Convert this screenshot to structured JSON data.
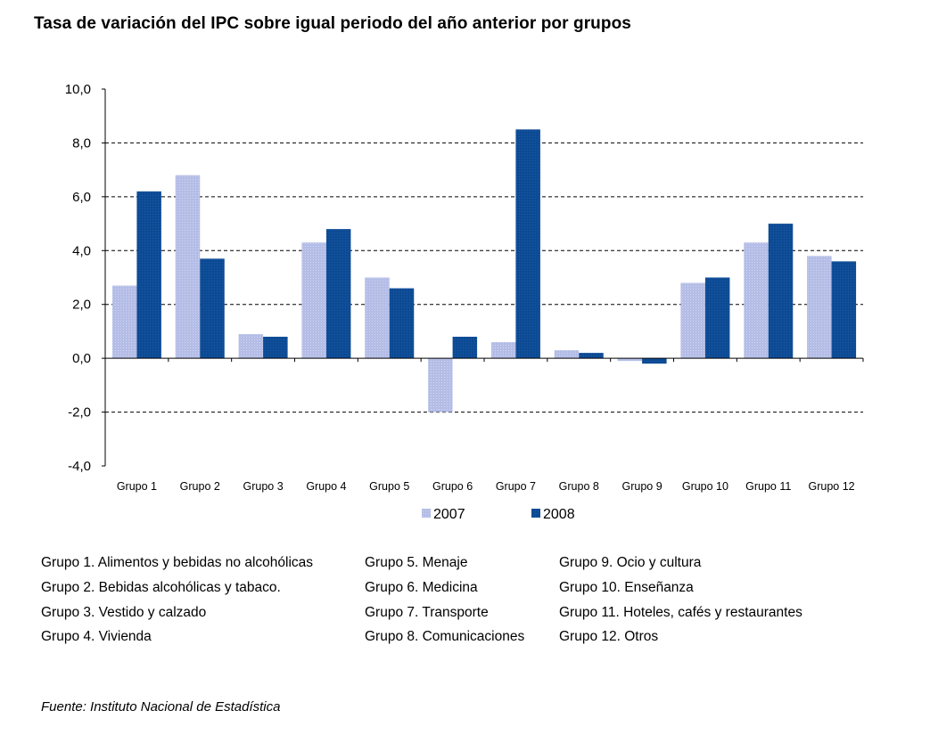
{
  "title": "Tasa de variación del IPC sobre igual periodo del año anterior por grupos",
  "colors": {
    "series_2007": "#b4bde6",
    "series_2008": "#0d4a94",
    "grid": "#000000"
  },
  "chart_data": {
    "type": "bar",
    "categories": [
      "Grupo 1",
      "Grupo 2",
      "Grupo 3",
      "Grupo 4",
      "Grupo 5",
      "Grupo 6",
      "Grupo 7",
      "Grupo 8",
      "Grupo 9",
      "Grupo 10",
      "Grupo 11",
      "Grupo 12"
    ],
    "series": [
      {
        "name": "2007",
        "values": [
          2.7,
          6.8,
          0.9,
          4.3,
          3.0,
          -2.0,
          0.6,
          0.3,
          -0.1,
          2.8,
          4.3,
          3.8
        ]
      },
      {
        "name": "2008",
        "values": [
          6.2,
          3.7,
          0.8,
          4.8,
          2.6,
          0.8,
          8.5,
          0.2,
          -0.2,
          3.0,
          5.0,
          3.6
        ]
      }
    ],
    "yticks": [
      "10,0",
      "8,0",
      "6,0",
      "4,0",
      "2,0",
      "0,0",
      "-2,0",
      "-4,0"
    ],
    "ylim": [
      -4,
      10
    ],
    "grid": true,
    "legend_position": "bottom"
  },
  "glossary": [
    [
      "Grupo 1. Alimentos y bebidas no alcohólicas",
      "Grupo 2. Bebidas alcohólicas y  tabaco.",
      "Grupo 3. Vestido y calzado",
      "Grupo 4. Vivienda"
    ],
    [
      "Grupo 5. Menaje",
      "Grupo 6. Medicina",
      "Grupo 7. Transporte",
      "Grupo 8. Comunicaciones"
    ],
    [
      "Grupo 9. Ocio y cultura",
      "Grupo 10. Enseñanza",
      "Grupo 11. Hoteles, cafés y restaurantes",
      "Grupo 12. Otros"
    ]
  ],
  "source": "Fuente: Instituto Nacional de Estadística"
}
